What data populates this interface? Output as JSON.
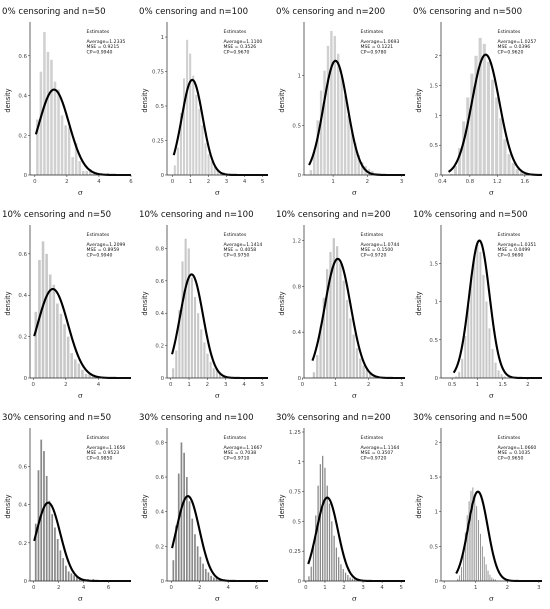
{
  "chart_data": [
    {
      "type": "bar",
      "title": "0% censoring and n=50",
      "ylabel": "density",
      "xlabel": "σ",
      "xlim": [
        -0.3,
        6.0
      ],
      "ylim": [
        0,
        0.75
      ],
      "xticks": [
        0,
        2,
        4,
        6
      ],
      "yticks": [
        0,
        0.2,
        0.4,
        0.6
      ],
      "bins": {
        "start": 0.05,
        "width": 0.22,
        "heights": [
          0.28,
          0.52,
          0.72,
          0.62,
          0.58,
          0.47,
          0.43,
          0.3,
          0.25,
          0.24,
          0.09,
          0.16,
          0.07,
          0.02,
          0.02,
          0.03,
          0.01,
          0.0,
          0.01,
          0.0,
          0.01
        ]
      },
      "bar_color": "#d0d0d0",
      "curve": {
        "mean": 1.2,
        "sd": 0.93,
        "peak": 0.43
      },
      "legend_title": "Estimates",
      "stats": [
        "Average=1.2335",
        "MSE = 0.9215",
        "CP=0.9940"
      ]
    },
    {
      "type": "bar",
      "title": "0% censoring and n=100",
      "ylabel": "density",
      "xlabel": "σ",
      "xlim": [
        -0.3,
        5.3
      ],
      "ylim": [
        0,
        1.08
      ],
      "xticks": [
        0,
        1,
        2,
        3,
        4,
        5
      ],
      "yticks": [
        0,
        0.25,
        0.5,
        0.75,
        1.0
      ],
      "bins": {
        "start": 0.05,
        "width": 0.17,
        "heights": [
          0.07,
          0.2,
          0.45,
          0.7,
          0.98,
          0.88,
          0.72,
          0.58,
          0.48,
          0.36,
          0.23,
          0.15,
          0.1,
          0.06,
          0.04,
          0.02,
          0.02,
          0.01,
          0.01,
          0.0,
          0.01
        ]
      },
      "bar_color": "#d0d0d0",
      "curve": {
        "mean": 1.1,
        "sd": 0.58,
        "peak": 0.69
      },
      "legend_title": "Estimates",
      "stats": [
        "Average=1.1100",
        "MSE = 0.3526",
        "CP=0.9670"
      ]
    },
    {
      "type": "bar",
      "title": "0% censoring and n=200",
      "ylabel": "density",
      "xlabel": "σ",
      "xlim": [
        0.15,
        3.1
      ],
      "ylim": [
        0,
        1.5
      ],
      "xticks": [
        1,
        2,
        3
      ],
      "yticks": [
        0,
        0.5,
        1.0
      ],
      "bins": {
        "start": 0.3,
        "width": 0.1,
        "heights": [
          0.05,
          0.25,
          0.55,
          0.85,
          1.05,
          1.3,
          1.45,
          1.4,
          1.22,
          1.0,
          0.8,
          0.6,
          0.45,
          0.32,
          0.2,
          0.13,
          0.09,
          0.06,
          0.04,
          0.02,
          0.02
        ]
      },
      "bar_color": "#d0d0d0",
      "curve": {
        "mean": 1.07,
        "sd": 0.35,
        "peak": 1.15
      },
      "legend_title": "Estimates",
      "stats": [
        "Average=1.0693",
        "MSE = 0.1221",
        "CP=0.9780"
      ]
    },
    {
      "type": "bar",
      "title": "0% censoring and n=500",
      "ylabel": "density",
      "xlabel": "σ",
      "xlim": [
        0.38,
        1.85
      ],
      "ylim": [
        0,
        2.5
      ],
      "xticks": [
        0.4,
        0.8,
        1.2,
        1.6
      ],
      "yticks": [
        0,
        0.5,
        1.0,
        1.5,
        2.0
      ],
      "bins": {
        "start": 0.5,
        "width": 0.06,
        "heights": [
          0.02,
          0.15,
          0.45,
          0.9,
          1.3,
          1.7,
          2.0,
          2.3,
          2.2,
          1.9,
          1.6,
          1.3,
          0.95,
          0.6,
          0.35,
          0.2,
          0.1,
          0.05,
          0.02
        ]
      },
      "bar_color": "#d0d0d0",
      "curve": {
        "mean": 1.03,
        "sd": 0.2,
        "peak": 2.02
      },
      "legend_title": "Estimates",
      "stats": [
        "Average=1.0257",
        "MSE = 0.0396",
        "CP=0.9620"
      ]
    },
    {
      "type": "bar",
      "title": "10% censoring and n=50",
      "ylabel": "density",
      "xlabel": "σ",
      "xlim": [
        -0.2,
        6.0
      ],
      "ylim": [
        0,
        0.72
      ],
      "xticks": [
        0,
        2,
        4
      ],
      "yticks": [
        0,
        0.2,
        0.4,
        0.6
      ],
      "bins": {
        "start": 0.05,
        "width": 0.22,
        "heights": [
          0.32,
          0.57,
          0.66,
          0.6,
          0.5,
          0.45,
          0.36,
          0.31,
          0.26,
          0.2,
          0.12,
          0.09,
          0.07,
          0.04,
          0.02,
          0.02,
          0.01,
          0.01,
          0.0
        ]
      },
      "bar_color": "#c8c8c8",
      "curve": {
        "mean": 1.2,
        "sd": 0.93,
        "peak": 0.43
      },
      "legend_title": "Estimates",
      "stats": [
        "Average=1.2099",
        "MSE = 0.8959",
        "CP=0.9940"
      ]
    },
    {
      "type": "bar",
      "title": "10% censoring and n=100",
      "ylabel": "density",
      "xlabel": "σ",
      "xlim": [
        -0.2,
        5.3
      ],
      "ylim": [
        0,
        0.92
      ],
      "xticks": [
        0,
        1,
        2,
        3,
        4,
        5
      ],
      "yticks": [
        0,
        0.2,
        0.4,
        0.6,
        0.8
      ],
      "bins": {
        "start": 0.05,
        "width": 0.17,
        "heights": [
          0.06,
          0.17,
          0.42,
          0.72,
          0.86,
          0.8,
          0.62,
          0.5,
          0.4,
          0.3,
          0.22,
          0.15,
          0.1,
          0.06,
          0.05,
          0.03,
          0.02,
          0.01,
          0.01
        ]
      },
      "bar_color": "#c8c8c8",
      "curve": {
        "mean": 1.14,
        "sd": 0.62,
        "peak": 0.64
      },
      "legend_title": "Estimates",
      "stats": [
        "Average=1.1414",
        "MSE = 0.4058",
        "CP=0.9750"
      ]
    },
    {
      "type": "bar",
      "title": "10% censoring and n=200",
      "ylabel": "density",
      "xlabel": "σ",
      "xlim": [
        0.05,
        3.1
      ],
      "ylim": [
        0,
        1.3
      ],
      "xticks": [
        0,
        1,
        2,
        3
      ],
      "yticks": [
        0,
        0.4,
        0.8,
        1.2
      ],
      "bins": {
        "start": 0.3,
        "width": 0.1,
        "heights": [
          0.05,
          0.2,
          0.45,
          0.7,
          0.95,
          1.1,
          1.22,
          1.15,
          1.0,
          0.85,
          0.68,
          0.52,
          0.38,
          0.26,
          0.17,
          0.11,
          0.07,
          0.05,
          0.03,
          0.02,
          0.01
        ]
      },
      "bar_color": "#c8c8c8",
      "curve": {
        "mean": 1.07,
        "sd": 0.39,
        "peak": 1.04
      },
      "legend_title": "Estimates",
      "stats": [
        "Average=1.0744",
        "MSE = 0.1500",
        "CP=0.9720"
      ]
    },
    {
      "type": "bar",
      "title": "10% censoring and n=500",
      "ylabel": "density",
      "xlabel": "σ",
      "xlim": [
        0.28,
        2.28
      ],
      "ylim": [
        0,
        1.95
      ],
      "xticks": [
        0.5,
        1.0,
        1.5,
        2.0
      ],
      "yticks": [
        0,
        0.5,
        1.0,
        1.5
      ],
      "bins": {
        "start": 0.55,
        "width": 0.06,
        "heights": [
          0.02,
          0.08,
          0.25,
          0.55,
          0.95,
          1.35,
          1.6,
          1.75,
          1.65,
          1.35,
          1.0,
          0.65,
          0.38,
          0.2,
          0.1,
          0.05,
          0.02
        ]
      },
      "bar_color": "#c8c8c8",
      "curve": {
        "mean": 1.04,
        "sd": 0.2,
        "peak": 1.8
      },
      "legend_title": "Estimates",
      "stats": [
        "Average=1.0351",
        "MSE = 0.0499",
        "CP=0.9690"
      ]
    },
    {
      "type": "bar",
      "title": "30% censoring and n=50",
      "ylabel": "density",
      "xlabel": "σ",
      "xlim": [
        -0.3,
        7.8
      ],
      "ylim": [
        0,
        0.78
      ],
      "xticks": [
        0,
        2,
        4,
        6
      ],
      "yticks": [
        0,
        0.2,
        0.4,
        0.6
      ],
      "bins": {
        "start": 0.05,
        "width": 0.22,
        "heights": [
          0.3,
          0.58,
          0.74,
          0.68,
          0.55,
          0.42,
          0.35,
          0.28,
          0.22,
          0.16,
          0.12,
          0.08,
          0.05,
          0.04,
          0.03,
          0.02,
          0.02,
          0.01,
          0.01,
          0.01,
          0.0,
          0.01
        ]
      },
      "bar_color": "#8a8a8a",
      "curve": {
        "mean": 1.16,
        "sd": 0.97,
        "peak": 0.41
      },
      "legend_title": "Estimates",
      "stats": [
        "Average=1.1656",
        "MSE = 0.9523",
        "CP=0.9850"
      ]
    },
    {
      "type": "bar",
      "title": "30% censoring and n=100",
      "ylabel": "density",
      "xlabel": "σ",
      "xlim": [
        -0.3,
        6.8
      ],
      "ylim": [
        0,
        0.86
      ],
      "xticks": [
        0,
        2,
        4,
        6
      ],
      "yticks": [
        0,
        0.2,
        0.4,
        0.6,
        0.8
      ],
      "bins": {
        "start": 0.05,
        "width": 0.19,
        "heights": [
          0.12,
          0.32,
          0.62,
          0.8,
          0.74,
          0.6,
          0.46,
          0.36,
          0.27,
          0.2,
          0.14,
          0.1,
          0.07,
          0.05,
          0.03,
          0.02,
          0.02,
          0.01,
          0.01,
          0.01,
          0.0
        ]
      },
      "bar_color": "#8a8a8a",
      "curve": {
        "mean": 1.17,
        "sd": 0.81,
        "peak": 0.49
      },
      "legend_title": "Estimates",
      "stats": [
        "Average=1.1667",
        "MSE = 0.7038",
        "CP=0.9710"
      ]
    },
    {
      "type": "bar",
      "title": "30% censoring and n=200",
      "ylabel": "density",
      "xlabel": "σ",
      "xlim": [
        -0.1,
        5.2
      ],
      "ylim": [
        0,
        1.25
      ],
      "xticks": [
        0,
        1,
        2,
        3,
        4,
        5
      ],
      "yticks": [
        0,
        0.25,
        0.5,
        0.75,
        1.0,
        1.25
      ],
      "bins": {
        "start": 0.1,
        "width": 0.12,
        "heights": [
          0.04,
          0.12,
          0.3,
          0.55,
          0.8,
          0.98,
          1.05,
          0.95,
          0.8,
          0.65,
          0.5,
          0.38,
          0.28,
          0.2,
          0.14,
          0.1,
          0.07,
          0.05,
          0.03,
          0.02,
          0.02,
          0.01
        ]
      },
      "bar_color": "#8a8a8a",
      "curve": {
        "mean": 1.12,
        "sd": 0.56,
        "peak": 0.7
      },
      "legend_title": "Estimates",
      "stats": [
        "Average=1.1164",
        "MSE = 0.3507",
        "CP=0.9720"
      ]
    },
    {
      "type": "bar",
      "title": "30% censoring and n=500",
      "ylabel": "density",
      "xlabel": "σ",
      "xlim": [
        -0.1,
        3.1
      ],
      "ylim": [
        0,
        2.15
      ],
      "xticks": [
        0,
        1,
        2,
        3
      ],
      "yticks": [
        0,
        0.5,
        1.0,
        1.5,
        2.0
      ],
      "bins": {
        "start": 0.4,
        "width": 0.06,
        "heights": [
          0.03,
          0.08,
          0.2,
          0.42,
          0.7,
          0.95,
          1.15,
          1.3,
          1.35,
          1.25,
          1.08,
          0.88,
          0.68,
          0.5,
          0.35,
          0.24,
          0.15,
          0.09,
          0.05,
          0.03,
          0.02
        ]
      },
      "bar_color": "#8a8a8a",
      "curve": {
        "mean": 1.07,
        "sd": 0.31,
        "peak": 1.29
      },
      "legend_title": "Estimates",
      "stats": [
        "Average=1.0660",
        "MSE = 0.1035",
        "CP=0.9650"
      ]
    }
  ]
}
